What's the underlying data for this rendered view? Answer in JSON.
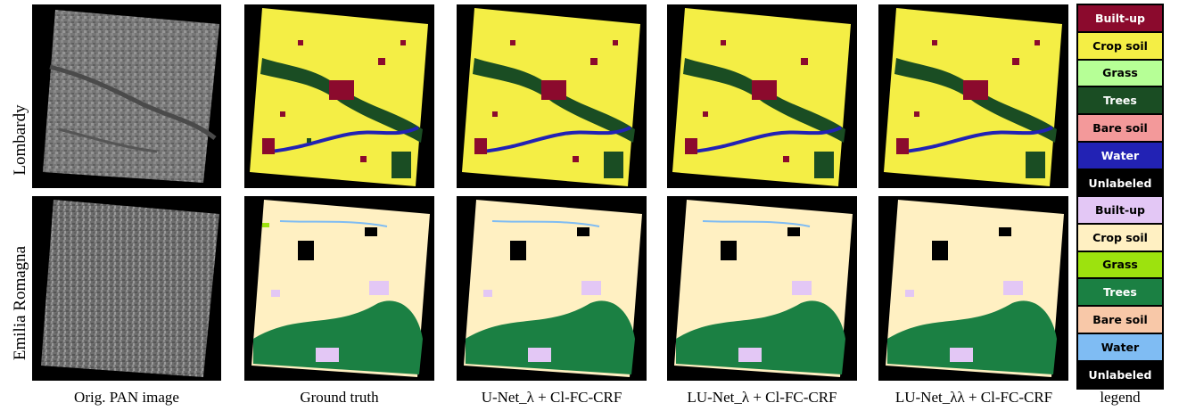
{
  "rows": [
    {
      "label": "Lombardy",
      "legend": [
        {
          "name": "Built-up",
          "color": "#8b0a2d",
          "text_color": "#ffffff"
        },
        {
          "name": "Crop soil",
          "color": "#f4ee45",
          "text_color": "#000000"
        },
        {
          "name": "Grass",
          "color": "#b6ff96",
          "text_color": "#000000"
        },
        {
          "name": "Trees",
          "color": "#1a4d23",
          "text_color": "#ffffff"
        },
        {
          "name": "Bare soil",
          "color": "#f3999a",
          "text_color": "#000000"
        },
        {
          "name": "Water",
          "color": "#2222b4",
          "text_color": "#ffffff"
        },
        {
          "name": "Unlabeled",
          "color": "#000000",
          "text_color": "#ffffff"
        }
      ]
    },
    {
      "label": "Emilia Romagna",
      "legend": [
        {
          "name": "Built-up",
          "color": "#e3c7f5",
          "text_color": "#000000"
        },
        {
          "name": "Crop soil",
          "color": "#fff0c2",
          "text_color": "#000000"
        },
        {
          "name": "Grass",
          "color": "#9de20e",
          "text_color": "#000000"
        },
        {
          "name": "Trees",
          "color": "#1b8043",
          "text_color": "#ffffff"
        },
        {
          "name": "Bare soil",
          "color": "#f8c8a8",
          "text_color": "#000000"
        },
        {
          "name": "Water",
          "color": "#7fbcf3",
          "text_color": "#000000"
        },
        {
          "name": "Unlabeled",
          "color": "#000000",
          "text_color": "#ffffff"
        }
      ]
    }
  ],
  "captions": {
    "pan": "Orig. PAN image",
    "gt": "Ground truth",
    "unet": "U-Net_λ + Cl-FC-CRF",
    "lunet": "LU-Net_λ + Cl-FC-CRF",
    "lunet2": "LU-Net_λλ + Cl-FC-CRF",
    "legend": "legend"
  }
}
